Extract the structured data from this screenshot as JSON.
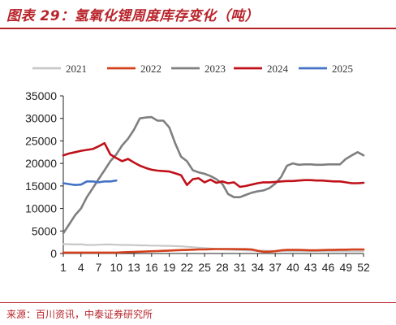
{
  "header": {
    "title": "图表 29：氢氧化锂周度库存变化（吨）"
  },
  "footer": {
    "source": "来源：百川资讯，中泰证券研究所"
  },
  "chart_data": {
    "type": "line",
    "title": "",
    "xlabel": "",
    "ylabel": "",
    "ylim": [
      0,
      35000
    ],
    "yticks": [
      0,
      5000,
      10000,
      15000,
      20000,
      25000,
      30000,
      35000
    ],
    "xlim": [
      1,
      52
    ],
    "xticks": [
      1,
      4,
      7,
      10,
      13,
      16,
      19,
      22,
      25,
      28,
      31,
      34,
      37,
      40,
      43,
      46,
      49,
      52
    ],
    "grid": false,
    "legend": "top",
    "series": [
      {
        "name": "2021",
        "color": "#c8c8c8",
        "x": [
          1,
          2,
          3,
          4,
          5,
          6,
          7,
          8,
          9,
          10,
          11,
          12,
          13,
          14,
          15,
          16,
          17,
          18,
          19,
          20,
          21,
          22,
          23,
          24,
          25,
          26,
          27,
          28,
          29,
          30,
          31,
          32,
          33,
          34,
          35,
          36,
          37,
          38,
          39,
          40,
          41,
          42,
          43,
          44,
          45,
          46,
          47,
          48,
          49,
          50,
          51,
          52
        ],
        "values": [
          2100,
          2050,
          2000,
          2050,
          1900,
          1900,
          1950,
          2000,
          2000,
          1950,
          1900,
          1900,
          1850,
          1800,
          1800,
          1750,
          1750,
          1700,
          1700,
          1650,
          1600,
          1500,
          1400,
          1300,
          1200,
          1100,
          1000,
          900,
          850,
          800,
          750,
          700,
          650,
          620,
          600,
          580,
          560,
          550,
          540,
          530,
          520,
          510,
          500,
          500,
          500,
          500,
          500,
          500,
          500,
          500,
          500,
          500
        ]
      },
      {
        "name": "2022",
        "color": "#d2401c",
        "x": [
          1,
          2,
          3,
          4,
          5,
          6,
          7,
          8,
          9,
          10,
          11,
          12,
          13,
          14,
          15,
          16,
          17,
          18,
          19,
          20,
          21,
          22,
          23,
          24,
          25,
          26,
          27,
          28,
          29,
          30,
          31,
          32,
          33,
          34,
          35,
          36,
          37,
          38,
          39,
          40,
          41,
          42,
          43,
          44,
          45,
          46,
          47,
          48,
          49,
          50,
          51,
          52
        ],
        "values": [
          200,
          200,
          200,
          200,
          200,
          200,
          200,
          200,
          200,
          200,
          250,
          300,
          350,
          400,
          450,
          500,
          550,
          600,
          650,
          700,
          750,
          800,
          850,
          900,
          900,
          950,
          1000,
          1000,
          1000,
          1000,
          950,
          950,
          900,
          600,
          400,
          400,
          500,
          700,
          800,
          800,
          800,
          750,
          700,
          700,
          750,
          800,
          800,
          850,
          850,
          900,
          900,
          900
        ]
      },
      {
        "name": "2023",
        "color": "#7f7f7f",
        "x": [
          1,
          2,
          3,
          4,
          5,
          6,
          7,
          8,
          9,
          10,
          11,
          12,
          13,
          14,
          15,
          16,
          17,
          18,
          19,
          20,
          21,
          22,
          23,
          24,
          25,
          26,
          27,
          28,
          29,
          30,
          31,
          32,
          33,
          34,
          35,
          36,
          37,
          38,
          39,
          40,
          41,
          42,
          43,
          44,
          45,
          46,
          47,
          48,
          49,
          50,
          51,
          52
        ],
        "values": [
          4500,
          6500,
          8500,
          10000,
          12500,
          14500,
          16500,
          18500,
          20500,
          22000,
          24000,
          25500,
          27500,
          30000,
          30200,
          30300,
          29500,
          29500,
          28000,
          24500,
          21500,
          20500,
          18500,
          18000,
          17700,
          17200,
          16500,
          15500,
          13200,
          12500,
          12500,
          13000,
          13500,
          13800,
          14000,
          14500,
          15500,
          17000,
          19500,
          20000,
          19700,
          19800,
          19800,
          19700,
          19700,
          19800,
          19800,
          19800,
          21000,
          21800,
          22500,
          21800
        ]
      },
      {
        "name": "2024",
        "color": "#c0101a",
        "x": [
          1,
          2,
          3,
          4,
          5,
          6,
          7,
          8,
          9,
          10,
          11,
          12,
          13,
          14,
          15,
          16,
          17,
          18,
          19,
          20,
          21,
          22,
          23,
          24,
          25,
          26,
          27,
          28,
          29,
          30,
          31,
          32,
          33,
          34,
          35,
          36,
          37,
          38,
          39,
          40,
          41,
          42,
          43,
          44,
          45,
          46,
          47,
          48,
          49,
          50,
          51,
          52
        ],
        "values": [
          21800,
          22200,
          22500,
          22800,
          23000,
          23200,
          23800,
          24500,
          22000,
          21200,
          20500,
          21000,
          20200,
          19500,
          19000,
          18600,
          18400,
          18300,
          18200,
          17800,
          17400,
          15200,
          16500,
          16700,
          15800,
          16400,
          15700,
          16000,
          15600,
          15800,
          14800,
          15000,
          15300,
          15600,
          15800,
          15800,
          15900,
          16000,
          16100,
          16100,
          16200,
          16300,
          16300,
          16200,
          16200,
          16100,
          16000,
          16000,
          15800,
          15600,
          15600,
          15700
        ]
      },
      {
        "name": "2025",
        "color": "#4472c4",
        "x": [
          1,
          2,
          3,
          4,
          5,
          6,
          7,
          8,
          9,
          10
        ],
        "values": [
          15600,
          15400,
          15200,
          15300,
          16000,
          16000,
          15800,
          16000,
          16000,
          16200
        ]
      }
    ]
  }
}
